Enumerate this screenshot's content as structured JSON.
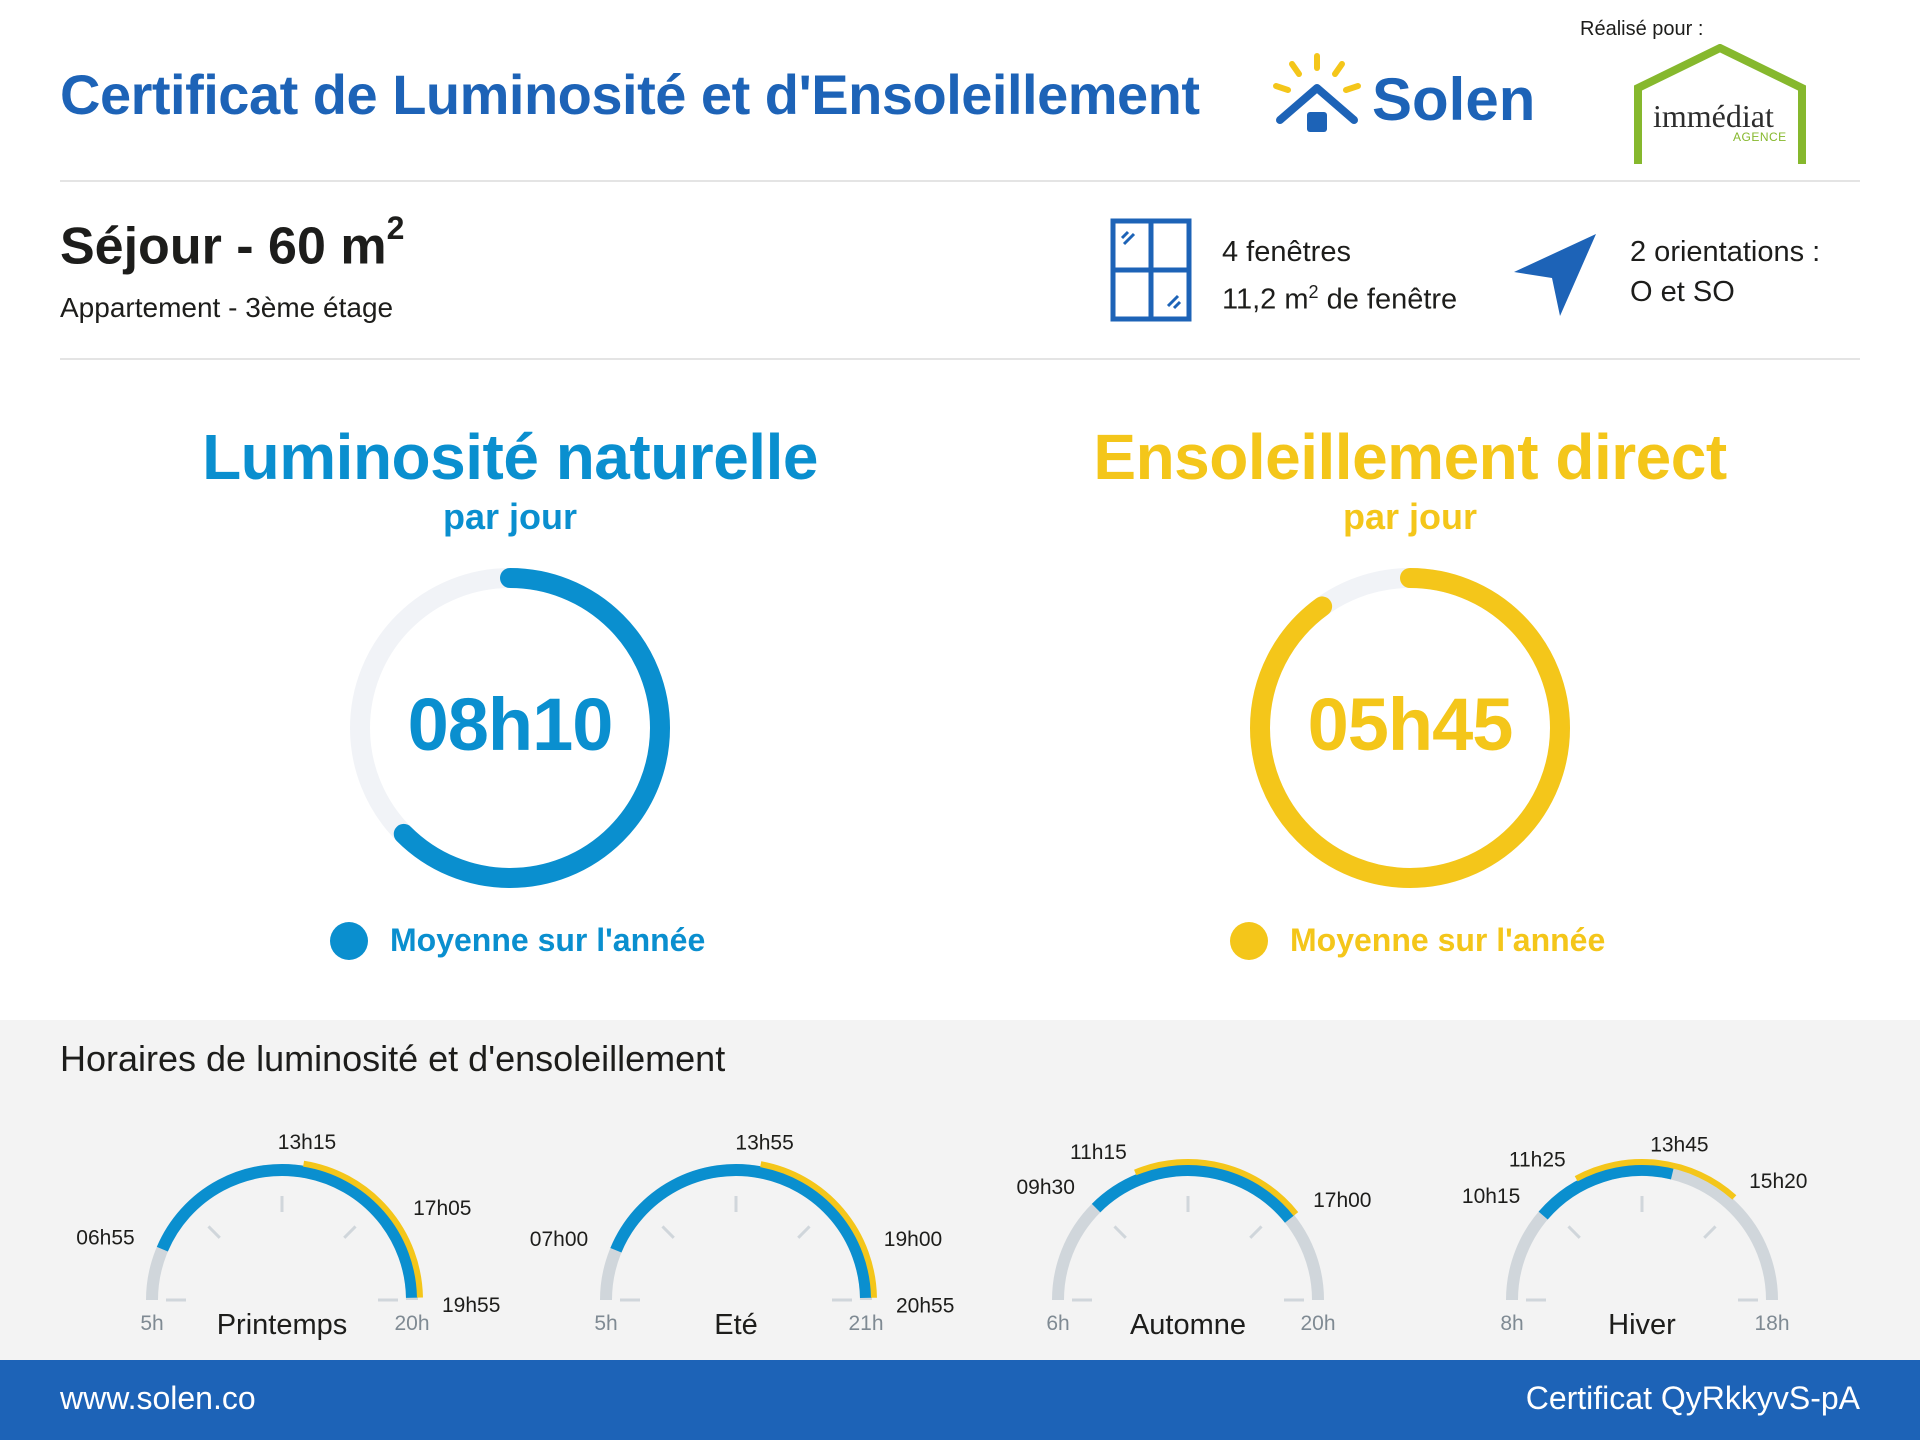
{
  "header": {
    "title": "Certificat de Luminosité et d'Ensoleillement",
    "brand_name": "Solen",
    "made_for_label": "Réalisé pour :",
    "agency_name": "immédiat",
    "agency_sub": "AGENCE"
  },
  "room": {
    "title": "Séjour - 60 m",
    "title_sup": "2",
    "subtitle": "Appartement - 3ème étage",
    "windows_line1": "4 fenêtres",
    "windows_line2_pre": "11,2 m",
    "windows_line2_sup": "2",
    "windows_line2_post": " de fenêtre",
    "orientation_line1": "2 orientations :",
    "orientation_line2": "O et SO"
  },
  "metrics": {
    "luminosity": {
      "title": "Luminosité naturelle",
      "subtitle": "par jour",
      "value": "08h10",
      "legend": "Moyenne sur l'année",
      "fraction": 0.625,
      "color": "#0a8fcf"
    },
    "sunshine": {
      "title": "Ensoleillement direct",
      "subtitle": "par jour",
      "value": "05h45",
      "legend": "Moyenne sur l'année",
      "fraction": 0.9,
      "color": "#f4c61a"
    }
  },
  "schedule": {
    "title": "Horaires de luminosité et d'ensoleillement",
    "seasons": [
      {
        "name": "Printemps",
        "axis_min_label": "5h",
        "axis_max_label": "20h",
        "axis_min": 5,
        "axis_max": 20,
        "light_start": 6.9167,
        "light_end": 19.9167,
        "sun_start": 13.25,
        "sun_end": 19.9167,
        "labels": [
          {
            "text": "06h55",
            "at": 6.9167
          },
          {
            "text": "13h15",
            "at": 13.25
          },
          {
            "text": "17h05",
            "at": 17.0833
          },
          {
            "text": "19h55",
            "at": 19.9167
          }
        ]
      },
      {
        "name": "Eté",
        "axis_min_label": "5h",
        "axis_max_label": "21h",
        "axis_min": 5,
        "axis_max": 21,
        "light_start": 7.0,
        "light_end": 20.9167,
        "sun_start": 13.9167,
        "sun_end": 20.9167,
        "labels": [
          {
            "text": "07h00",
            "at": 7.0
          },
          {
            "text": "13h55",
            "at": 13.9167
          },
          {
            "text": "19h00",
            "at": 19.0
          },
          {
            "text": "20h55",
            "at": 20.9167
          }
        ]
      },
      {
        "name": "Automne",
        "axis_min_label": "6h",
        "axis_max_label": "20h",
        "axis_min": 6,
        "axis_max": 20,
        "light_start": 9.5,
        "light_end": 17.0,
        "sun_start": 11.25,
        "sun_end": 17.0,
        "labels": [
          {
            "text": "09h30",
            "at": 9.5
          },
          {
            "text": "11h15",
            "at": 11.25
          },
          {
            "text": "17h00",
            "at": 17.0
          }
        ]
      },
      {
        "name": "Hiver",
        "axis_min_label": "8h",
        "axis_max_label": "18h",
        "axis_min": 8,
        "axis_max": 18,
        "light_start": 10.25,
        "light_end": 13.75,
        "sun_start": 11.4167,
        "sun_end": 15.3333,
        "labels": [
          {
            "text": "10h15",
            "at": 10.25
          },
          {
            "text": "11h25",
            "at": 11.4167
          },
          {
            "text": "13h45",
            "at": 13.75
          },
          {
            "text": "15h20",
            "at": 15.3333
          }
        ]
      }
    ]
  },
  "footer": {
    "url": "www.solen.co",
    "certificate": "Certificat QyRkkyvS-pA"
  },
  "colors": {
    "brand_blue": "#1d63b7",
    "light_blue": "#0a8fcf",
    "sun_yellow": "#f4c61a",
    "track_gray": "#d0d6db",
    "ring_track": "#f1f3f7",
    "agency_green": "#86b82d"
  }
}
